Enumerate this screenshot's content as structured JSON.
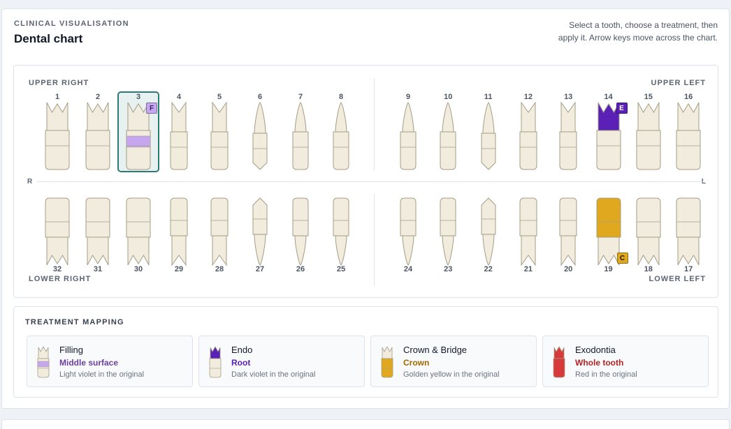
{
  "header": {
    "eyebrow": "CLINICAL VISUALISATION",
    "title": "Dental chart",
    "help": "Select a tooth, choose a treatment, then apply it. Arrow keys move across the chart."
  },
  "chart": {
    "quadrants": {
      "upper_right": "UPPER RIGHT",
      "upper_left": "UPPER LEFT",
      "lower_right": "LOWER RIGHT",
      "lower_left": "LOWER LEFT"
    },
    "side_right": "R",
    "side_left": "L",
    "upper_teeth": [
      {
        "num": "1",
        "shape": "molar"
      },
      {
        "num": "2",
        "shape": "molar"
      },
      {
        "num": "3",
        "shape": "molar",
        "selected": true,
        "treatment": "filling",
        "badge": "F"
      },
      {
        "num": "4",
        "shape": "premolar"
      },
      {
        "num": "5",
        "shape": "premolar"
      },
      {
        "num": "6",
        "shape": "canine"
      },
      {
        "num": "7",
        "shape": "incisor"
      },
      {
        "num": "8",
        "shape": "incisor"
      },
      {
        "num": "9",
        "shape": "incisor"
      },
      {
        "num": "10",
        "shape": "incisor"
      },
      {
        "num": "11",
        "shape": "canine"
      },
      {
        "num": "12",
        "shape": "premolar"
      },
      {
        "num": "13",
        "shape": "premolar"
      },
      {
        "num": "14",
        "shape": "molar",
        "treatment": "endo",
        "badge": "E"
      },
      {
        "num": "15",
        "shape": "molar"
      },
      {
        "num": "16",
        "shape": "molar"
      }
    ],
    "lower_teeth": [
      {
        "num": "32",
        "shape": "molar"
      },
      {
        "num": "31",
        "shape": "molar"
      },
      {
        "num": "30",
        "shape": "molar"
      },
      {
        "num": "29",
        "shape": "premolar"
      },
      {
        "num": "28",
        "shape": "premolar"
      },
      {
        "num": "27",
        "shape": "canine"
      },
      {
        "num": "26",
        "shape": "incisor"
      },
      {
        "num": "25",
        "shape": "incisor"
      },
      {
        "num": "24",
        "shape": "incisor"
      },
      {
        "num": "23",
        "shape": "incisor"
      },
      {
        "num": "22",
        "shape": "canine"
      },
      {
        "num": "21",
        "shape": "premolar"
      },
      {
        "num": "20",
        "shape": "premolar"
      },
      {
        "num": "19",
        "shape": "molar",
        "treatment": "crown",
        "badge": "C"
      },
      {
        "num": "18",
        "shape": "molar"
      },
      {
        "num": "17",
        "shape": "molar"
      }
    ]
  },
  "mapping": {
    "title": "TREATMENT MAPPING",
    "items": [
      {
        "name": "Filling",
        "surface": "Middle surface",
        "desc": "Light violet in the original",
        "color": "#c7a6f0",
        "surface_color": "#6b3fa0",
        "kind": "filling"
      },
      {
        "name": "Endo",
        "surface": "Root",
        "desc": "Dark violet in the original",
        "color": "#5b21b6",
        "surface_color": "#5b21b6",
        "kind": "endo"
      },
      {
        "name": "Crown & Bridge",
        "surface": "Crown",
        "desc": "Golden yellow in the original",
        "color": "#e0a81e",
        "surface_color": "#a06a00",
        "kind": "crown"
      },
      {
        "name": "Exodontia",
        "surface": "Whole tooth",
        "desc": "Red in the original",
        "color": "#d63a3a",
        "surface_color": "#b02424",
        "kind": "exo"
      }
    ]
  },
  "colors": {
    "tooth_fill": "#f1ecdd",
    "tooth_stroke": "#a49c84",
    "filling": "#c7a6f0",
    "endo": "#5b21b6",
    "crown": "#e0a81e",
    "exodontia": "#d63a3a",
    "selected_outline": "#2c7a78"
  }
}
